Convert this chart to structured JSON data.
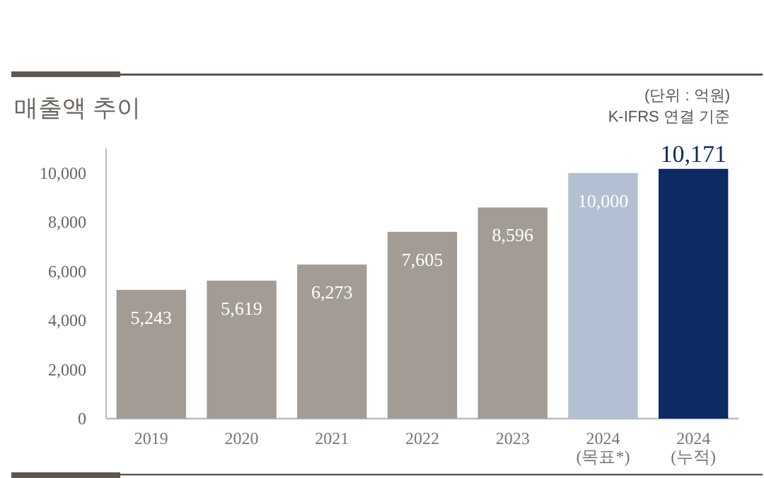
{
  "chart_data": {
    "type": "bar",
    "title": "매출액 추이",
    "annotations": [
      "(단위 : 억원)",
      "K-IFRS 연결 기준"
    ],
    "categories": [
      "2019",
      "2020",
      "2021",
      "2022",
      "2023",
      "2024 (목표*)",
      "2024 (누적)"
    ],
    "values": [
      5243,
      5619,
      6273,
      7605,
      8596,
      10000,
      10171
    ],
    "colors": [
      "#a39c95",
      "#a39c95",
      "#a39c95",
      "#a39c95",
      "#a39c95",
      "#b3bfd3",
      "#0d2a63"
    ],
    "value_labels": [
      "5,243",
      "5,619",
      "6,273",
      "7,605",
      "8,596",
      "10,000",
      "10,171"
    ],
    "ylim": [
      0,
      11000
    ],
    "yticks": [
      {
        "value": 0,
        "label": "0"
      },
      {
        "value": 2000,
        "label": "2,000"
      },
      {
        "value": 4000,
        "label": "4,000"
      },
      {
        "value": 6000,
        "label": "6,000"
      },
      {
        "value": 8000,
        "label": "8,000"
      },
      {
        "value": 10000,
        "label": "10,000"
      }
    ],
    "grid": false
  }
}
